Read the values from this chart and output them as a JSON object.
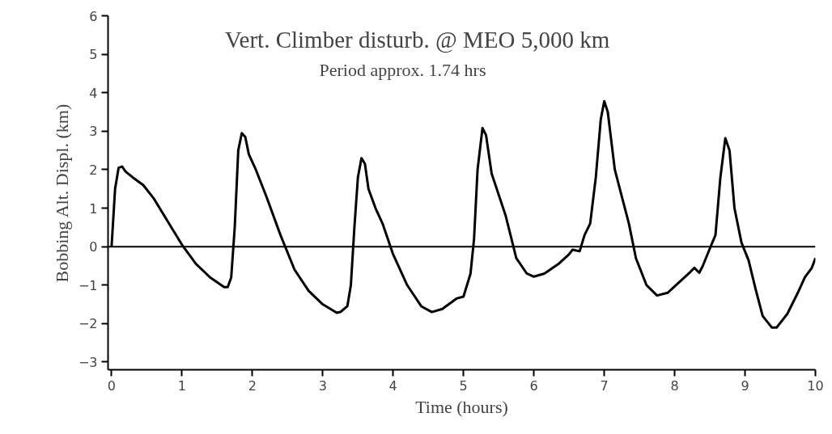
{
  "chart_data": {
    "type": "line",
    "title": "Vert. Climber disturb. @ MEO 5,000 km",
    "subtitle": "Period approx. 1.74 hrs",
    "xlabel": "Time (hours)",
    "ylabel": "Bobbing Alt. Displ. (km)",
    "xlim": [
      -0.05,
      10
    ],
    "ylim": [
      -3.2,
      6
    ],
    "xticks": [
      0,
      1,
      2,
      3,
      4,
      5,
      6,
      7,
      8,
      9,
      10
    ],
    "yticks": [
      -3,
      -2,
      -1,
      0,
      1,
      2,
      3,
      4,
      5,
      6
    ],
    "grid": false,
    "marker": "none",
    "line_style": "solid",
    "ref_lines": [
      {
        "axis": "y",
        "value": 0,
        "label": null,
        "color": "#000000"
      }
    ],
    "series": [
      {
        "color": "#000000",
        "x": [
          0,
          0.05,
          0.1,
          0.15,
          0.2,
          0.3,
          0.45,
          0.6,
          0.8,
          1.0,
          1.2,
          1.4,
          1.6,
          1.65,
          1.7,
          1.75,
          1.8,
          1.85,
          1.9,
          1.95,
          2.05,
          2.2,
          2.4,
          2.6,
          2.8,
          3.0,
          3.2,
          3.25,
          3.35,
          3.4,
          3.45,
          3.5,
          3.55,
          3.6,
          3.65,
          3.75,
          3.85,
          4.0,
          4.2,
          4.4,
          4.55,
          4.7,
          4.9,
          5.0,
          5.05,
          5.1,
          5.15,
          5.2,
          5.27,
          5.32,
          5.4,
          5.5,
          5.6,
          5.75,
          5.9,
          6.0,
          6.15,
          6.35,
          6.5,
          6.55,
          6.65,
          6.72,
          6.8,
          6.88,
          6.95,
          7.0,
          7.05,
          7.15,
          7.25,
          7.35,
          7.45,
          7.6,
          7.75,
          7.9,
          8.05,
          8.2,
          8.28,
          8.35,
          8.4,
          8.5,
          8.58,
          8.65,
          8.72,
          8.78,
          8.85,
          8.95,
          9.05,
          9.15,
          9.25,
          9.38,
          9.45,
          9.6,
          9.75,
          9.85,
          9.95,
          10.0
        ],
        "values": [
          0,
          1.5,
          2.05,
          2.08,
          1.95,
          1.8,
          1.6,
          1.25,
          0.65,
          0.05,
          -0.45,
          -0.8,
          -1.05,
          -1.05,
          -0.8,
          0.5,
          2.5,
          2.95,
          2.85,
          2.4,
          2.0,
          1.3,
          0.3,
          -0.6,
          -1.15,
          -1.5,
          -1.72,
          -1.7,
          -1.55,
          -1.0,
          0.5,
          1.8,
          2.3,
          2.15,
          1.5,
          1.0,
          0.6,
          -0.2,
          -1.0,
          -1.55,
          -1.7,
          -1.62,
          -1.35,
          -1.3,
          -1.0,
          -0.7,
          0.2,
          2.0,
          3.08,
          2.9,
          1.9,
          1.35,
          0.8,
          -0.3,
          -0.7,
          -0.78,
          -0.7,
          -0.45,
          -0.2,
          -0.08,
          -0.12,
          0.3,
          0.6,
          1.8,
          3.3,
          3.78,
          3.5,
          2.0,
          1.3,
          0.6,
          -0.3,
          -1.0,
          -1.27,
          -1.2,
          -0.95,
          -0.7,
          -0.55,
          -0.68,
          -0.5,
          -0.05,
          0.3,
          1.8,
          2.82,
          2.5,
          1.0,
          0.1,
          -0.35,
          -1.1,
          -1.8,
          -2.1,
          -2.1,
          -1.75,
          -1.2,
          -0.8,
          -0.55,
          -0.3
        ]
      }
    ]
  }
}
